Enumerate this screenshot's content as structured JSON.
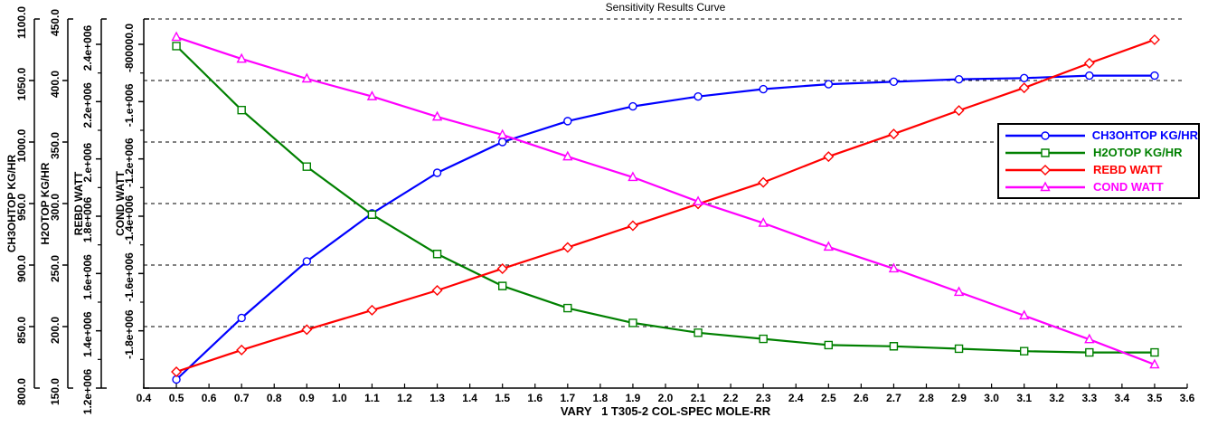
{
  "title": "Sensitivity Results Curve",
  "x_axis": {
    "title": "VARY   1 T305-2 COL-SPEC MOLE-RR",
    "min": 0.4,
    "max": 3.6,
    "tick_step": 0.1,
    "tick_labels": [
      "0.4",
      "0.5",
      "0.6",
      "0.7",
      "0.8",
      "0.9",
      "1.0",
      "1.1",
      "1.2",
      "1.3",
      "1.4",
      "1.5",
      "1.6",
      "1.7",
      "1.8",
      "1.9",
      "2.0",
      "2.1",
      "2.2",
      "2.3",
      "2.4",
      "2.5",
      "2.6",
      "2.7",
      "2.8",
      "2.9",
      "3.0",
      "3.1",
      "3.2",
      "3.3",
      "3.4",
      "3.5",
      "3.6"
    ]
  },
  "y_axes": [
    {
      "title": "CH3OHTOP KG/HR",
      "min": 800,
      "max": 1100,
      "tick_labels": [
        "1100.0",
        "1050.0",
        "1000.0",
        "950.0",
        "900.0",
        "850.0",
        "800.0"
      ]
    },
    {
      "title": "H2OTOP KG/HR",
      "min": 150,
      "max": 450,
      "tick_labels": [
        "450.0",
        "400.0",
        "350.0",
        "300.0",
        "250.0",
        "200.0",
        "150.0"
      ]
    },
    {
      "title": "REBD WATT",
      "min": 1200000,
      "max": 2400000,
      "tick_labels": [
        "2.4e+006",
        "2.2e+006",
        "2.e+006",
        "1.8e+006",
        "1.6e+006",
        "1.4e+006",
        "1.2e+006"
      ]
    },
    {
      "title": "COND WATT",
      "min": -2000000,
      "max": -800000,
      "tick_labels": [
        "-800000.0",
        "-1.e+006",
        "-1.2e+006",
        "-1.4e+006",
        "-1.6e+006",
        "-1.8e+006"
      ]
    }
  ],
  "chart_data": {
    "type": "line",
    "title": "Sensitivity Results Curve",
    "xlabel": "VARY   1 T305-2 COL-SPEC MOLE-RR",
    "x": [
      0.5,
      0.7,
      0.9,
      1.1,
      1.3,
      1.5,
      1.7,
      1.9,
      2.1,
      2.3,
      2.5,
      2.7,
      2.9,
      3.1,
      3.3,
      3.5
    ],
    "xlim": [
      0.4,
      3.6
    ],
    "grid": "horizontal-dashed",
    "legend_position": "right-upper",
    "series": [
      {
        "name": "CH3OHTOP KG/HR",
        "color": "#0000ff",
        "marker": "circle",
        "axis": 0,
        "values": [
          807,
          857,
          903,
          942,
          975,
          1000,
          1017,
          1029,
          1037,
          1043,
          1047,
          1049,
          1051,
          1052,
          1054,
          1054
        ]
      },
      {
        "name": "H2OTOP KG/HR",
        "color": "#008000",
        "marker": "square",
        "axis": 1,
        "values": [
          428,
          376,
          330,
          291,
          259,
          233,
          215,
          203,
          195,
          190,
          185,
          184,
          182,
          180,
          179,
          179
        ]
      },
      {
        "name": "REBD WATT",
        "color": "#ff0000",
        "marker": "diamond",
        "axis": 2,
        "values": [
          1257000,
          1333000,
          1404000,
          1472000,
          1541000,
          1617000,
          1691000,
          1767000,
          1843000,
          1918000,
          2008000,
          2087000,
          2169000,
          2248000,
          2334000,
          2416000
        ]
      },
      {
        "name": "COND WATT",
        "color": "#ff00ff",
        "marker": "triangle",
        "axis": 3,
        "values": [
          -775000,
          -851000,
          -920000,
          -982000,
          -1053000,
          -1116000,
          -1192000,
          -1264000,
          -1349000,
          -1424000,
          -1507000,
          -1583000,
          -1665000,
          -1747000,
          -1830000,
          -1918000
        ]
      }
    ]
  },
  "legend": {
    "entries": [
      {
        "label": "CH3OHTOP KG/HR",
        "color": "#0000ff",
        "marker": "circle"
      },
      {
        "label": "H2OTOP KG/HR",
        "color": "#008000",
        "marker": "square"
      },
      {
        "label": "REBD WATT",
        "color": "#ff0000",
        "marker": "diamond"
      },
      {
        "label": "COND WATT",
        "color": "#ff00ff",
        "marker": "triangle"
      }
    ]
  }
}
